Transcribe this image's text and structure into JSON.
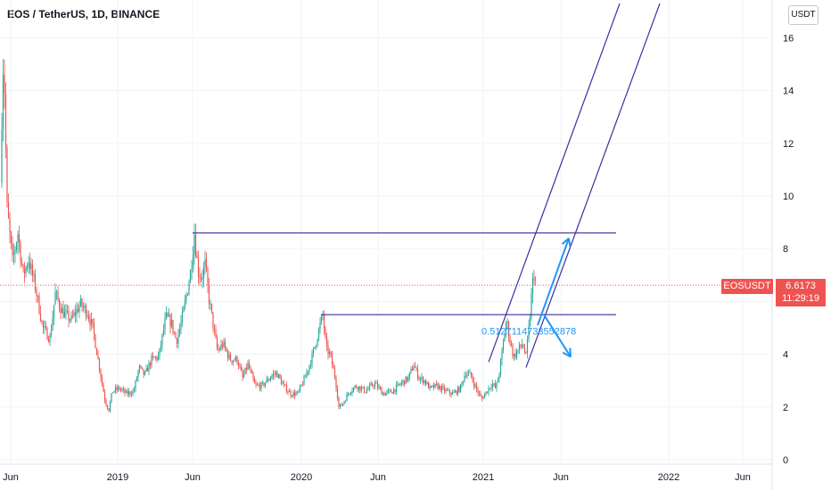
{
  "header": {
    "symbol_title": "EOS / TetherUS, 1D, BINANCE",
    "currency_badge": "USDT"
  },
  "price_tag": {
    "symbol": "EOSUSDT",
    "price": "6.6173",
    "countdown": "11:29:19"
  },
  "colors": {
    "up": "#26a69a",
    "down": "#ef5350",
    "drawing": "#3b2f9c",
    "arrow": "#2196f3",
    "price_line": "#ef5350"
  },
  "chart_data": {
    "type": "candlestick",
    "title": "EOS / TetherUS, 1D, BINANCE",
    "ylim": [
      0,
      17
    ],
    "y_ticks": [
      0,
      2,
      4,
      6,
      8,
      10,
      12,
      14,
      16
    ],
    "x_ticks": [
      "Jun",
      "2019",
      "Jun",
      "2020",
      "Jun",
      "2021",
      "Jun",
      "2022",
      "Jun"
    ],
    "last_price": 6.6173,
    "price_path": [
      [
        0,
        10.5
      ],
      [
        4,
        15.6
      ],
      [
        8,
        9.5
      ],
      [
        14,
        7.5
      ],
      [
        20,
        8.6
      ],
      [
        26,
        7.0
      ],
      [
        32,
        7.6
      ],
      [
        40,
        6.5
      ],
      [
        48,
        5.0
      ],
      [
        56,
        4.6
      ],
      [
        62,
        6.3
      ],
      [
        70,
        5.6
      ],
      [
        80,
        5.3
      ],
      [
        90,
        5.9
      ],
      [
        98,
        5.6
      ],
      [
        104,
        5.0
      ],
      [
        110,
        3.8
      ],
      [
        114,
        3.0
      ],
      [
        118,
        2.2
      ],
      [
        122,
        1.9
      ],
      [
        126,
        2.6
      ],
      [
        134,
        2.7
      ],
      [
        142,
        2.5
      ],
      [
        150,
        2.6
      ],
      [
        156,
        3.5
      ],
      [
        162,
        3.2
      ],
      [
        170,
        3.8
      ],
      [
        178,
        3.9
      ],
      [
        186,
        5.4
      ],
      [
        192,
        5.2
      ],
      [
        198,
        4.5
      ],
      [
        204,
        5.3
      ],
      [
        210,
        6.4
      ],
      [
        214,
        7.2
      ],
      [
        218,
        8.6
      ],
      [
        222,
        7.2
      ],
      [
        226,
        6.9
      ],
      [
        230,
        7.4
      ],
      [
        234,
        6.2
      ],
      [
        240,
        4.9
      ],
      [
        244,
        4.1
      ],
      [
        250,
        4.4
      ],
      [
        258,
        3.8
      ],
      [
        266,
        3.8
      ],
      [
        272,
        3.1
      ],
      [
        278,
        3.6
      ],
      [
        286,
        2.8
      ],
      [
        294,
        2.8
      ],
      [
        302,
        3.1
      ],
      [
        310,
        3.3
      ],
      [
        318,
        2.8
      ],
      [
        326,
        2.5
      ],
      [
        334,
        2.5
      ],
      [
        342,
        3.1
      ],
      [
        350,
        3.9
      ],
      [
        356,
        4.7
      ],
      [
        362,
        5.5
      ],
      [
        366,
        4.2
      ],
      [
        370,
        4.0
      ],
      [
        376,
        3.1
      ],
      [
        380,
        2.0
      ],
      [
        384,
        2.1
      ],
      [
        392,
        2.6
      ],
      [
        400,
        2.8
      ],
      [
        410,
        2.6
      ],
      [
        420,
        2.9
      ],
      [
        430,
        2.5
      ],
      [
        440,
        2.6
      ],
      [
        450,
        2.9
      ],
      [
        458,
        3.1
      ],
      [
        464,
        3.6
      ],
      [
        470,
        3.1
      ],
      [
        476,
        3.0
      ],
      [
        482,
        2.7
      ],
      [
        490,
        2.8
      ],
      [
        500,
        2.6
      ],
      [
        508,
        2.5
      ],
      [
        516,
        2.7
      ],
      [
        522,
        3.3
      ],
      [
        528,
        3.2
      ],
      [
        534,
        2.7
      ],
      [
        540,
        2.3
      ],
      [
        546,
        2.6
      ],
      [
        552,
        2.9
      ],
      [
        556,
        2.7
      ],
      [
        560,
        3.3
      ],
      [
        564,
        4.3
      ],
      [
        568,
        5.3
      ],
      [
        572,
        4.5
      ],
      [
        576,
        3.9
      ],
      [
        580,
        4.1
      ],
      [
        586,
        4.4
      ],
      [
        590,
        3.9
      ],
      [
        594,
        5.3
      ],
      [
        597,
        6.6
      ],
      [
        599,
        7.1
      ],
      [
        601,
        6.6
      ]
    ],
    "horizontal_lines": [
      {
        "price": 8.6,
        "from_x": 216,
        "to_x": 691
      },
      {
        "price": 5.5,
        "from_x": 360,
        "to_x": 691
      }
    ],
    "channel_lines": [
      {
        "from": [
          548,
          3.7
        ],
        "to": [
          695,
          17.3
        ]
      },
      {
        "from": [
          590,
          3.5
        ],
        "to": [
          740,
          17.3
        ]
      }
    ],
    "arrows": [
      {
        "from": [
          603,
          5.1
        ],
        "to": [
          638,
          8.4
        ]
      },
      {
        "from": [
          610,
          5.5
        ],
        "to": [
          640,
          3.9
        ]
      }
    ],
    "annotations": [
      {
        "text": "0.5127114733552878",
        "x": 540,
        "price": 4.75
      }
    ]
  }
}
